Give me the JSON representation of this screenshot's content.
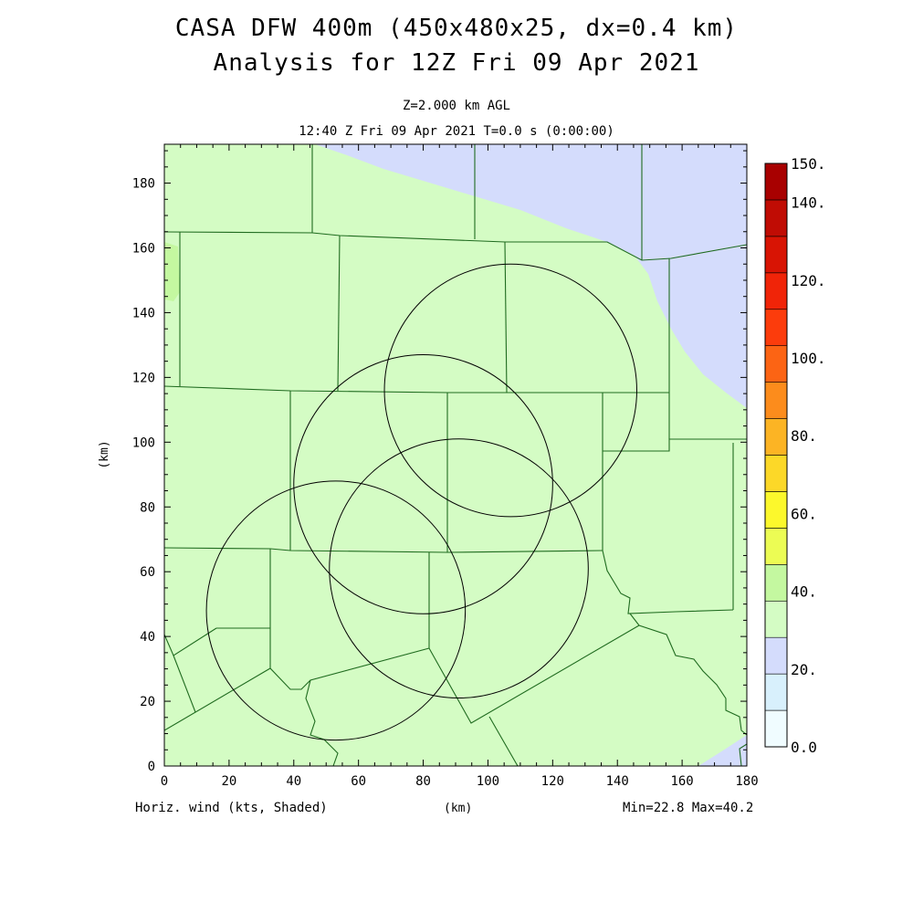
{
  "header": {
    "title_line1": "CASA DFW 400m (450x480x25, dx=0.4 km)",
    "title_line2": "Analysis for 12Z Fri 09 Apr 2021",
    "level": "Z=2.000 km AGL",
    "time": "12:40 Z Fri 09 Apr 2021   T=0.0 s (0:00:00)"
  },
  "axes": {
    "x_label": "(km)",
    "y_label": "(km)",
    "x_ticks": [
      "0",
      "20",
      "40",
      "60",
      "80",
      "100",
      "120",
      "140",
      "160",
      "180"
    ],
    "y_ticks": [
      "0",
      "20",
      "40",
      "60",
      "80",
      "100",
      "120",
      "140",
      "160",
      "180"
    ]
  },
  "footer": {
    "field": "Horiz. wind (kts, Shaded)",
    "center_unit": "(km)",
    "minmax": "Min=22.8 Max=40.2"
  },
  "colorbar": {
    "labels": [
      "150.",
      "140.",
      "120.",
      "100.",
      "80.",
      "60.",
      "40.",
      "20.",
      "0.0"
    ],
    "colors": [
      "#f0fcff",
      "#d8f0fc",
      "#d4dcfc",
      "#d4fcc4",
      "#c4f8a0",
      "#ecfc54",
      "#fcf82c",
      "#fcd828",
      "#fcb424",
      "#fc8c1c",
      "#fc6414",
      "#fc3c0c",
      "#f02408",
      "#d81404",
      "#c00c04",
      "#a80000"
    ]
  },
  "map": {
    "background_color": "#d4fcc4",
    "low_wind_color": "#d4dcfc",
    "high_patch_color": "#c4f8a0",
    "radar_circles": [
      {
        "cx": 107,
        "cy": 116,
        "r": 39
      },
      {
        "cx": 80,
        "cy": 87,
        "r": 40
      },
      {
        "cx": 53,
        "cy": 48,
        "r": 40
      },
      {
        "cx": 91,
        "cy": 61,
        "r": 40
      }
    ]
  }
}
